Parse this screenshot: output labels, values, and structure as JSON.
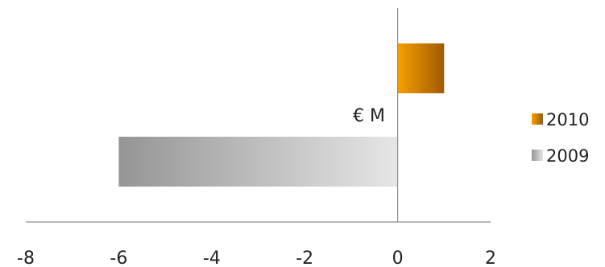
{
  "chart_data": {
    "type": "bar",
    "orientation": "horizontal",
    "unit_label": "€ M",
    "series": [
      {
        "name": "2010",
        "values": [
          1
        ],
        "color_light": "#f5a000",
        "color_dark": "#a05a00"
      },
      {
        "name": "2009",
        "values": [
          -6
        ],
        "color_light": "#e6e6e6",
        "color_dark": "#959595"
      }
    ],
    "xlim": [
      -8,
      2
    ],
    "xticks": [
      "-8",
      "-6",
      "-4",
      "-2",
      "0",
      "2"
    ],
    "grid": false,
    "legend_position": "right"
  }
}
